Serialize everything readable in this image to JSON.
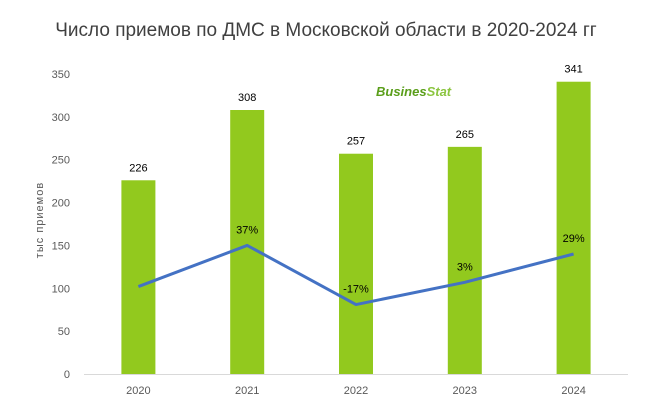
{
  "chart_data": {
    "type": "bar",
    "title": "Число приемов по ДМС в Московской области в 2020-2024 гг",
    "ylabel": "тыс приемов",
    "xlabel": "",
    "categories": [
      "2020",
      "2021",
      "2022",
      "2023",
      "2024"
    ],
    "ylim": [
      0,
      350
    ],
    "yticks": [
      0,
      50,
      100,
      150,
      200,
      250,
      300,
      350
    ],
    "grid": false,
    "series": [
      {
        "values": [
          226,
          308,
          257,
          265,
          341
        ],
        "labels": [
          "226",
          "308",
          "257",
          "265",
          "341"
        ],
        "color": "#92c91e"
      }
    ],
    "growth_line": {
      "type": "line",
      "plot_values": [
        102,
        150,
        81,
        107,
        140
      ],
      "labels": [
        "",
        "37%",
        "-17%",
        "3%",
        "29%"
      ],
      "color": "#4472c4"
    },
    "colors": {
      "bar": "#92c91e",
      "line": "#4472c4",
      "text": "#404040"
    }
  },
  "logo": {
    "part1": "Busines",
    "part2": "Stat"
  }
}
